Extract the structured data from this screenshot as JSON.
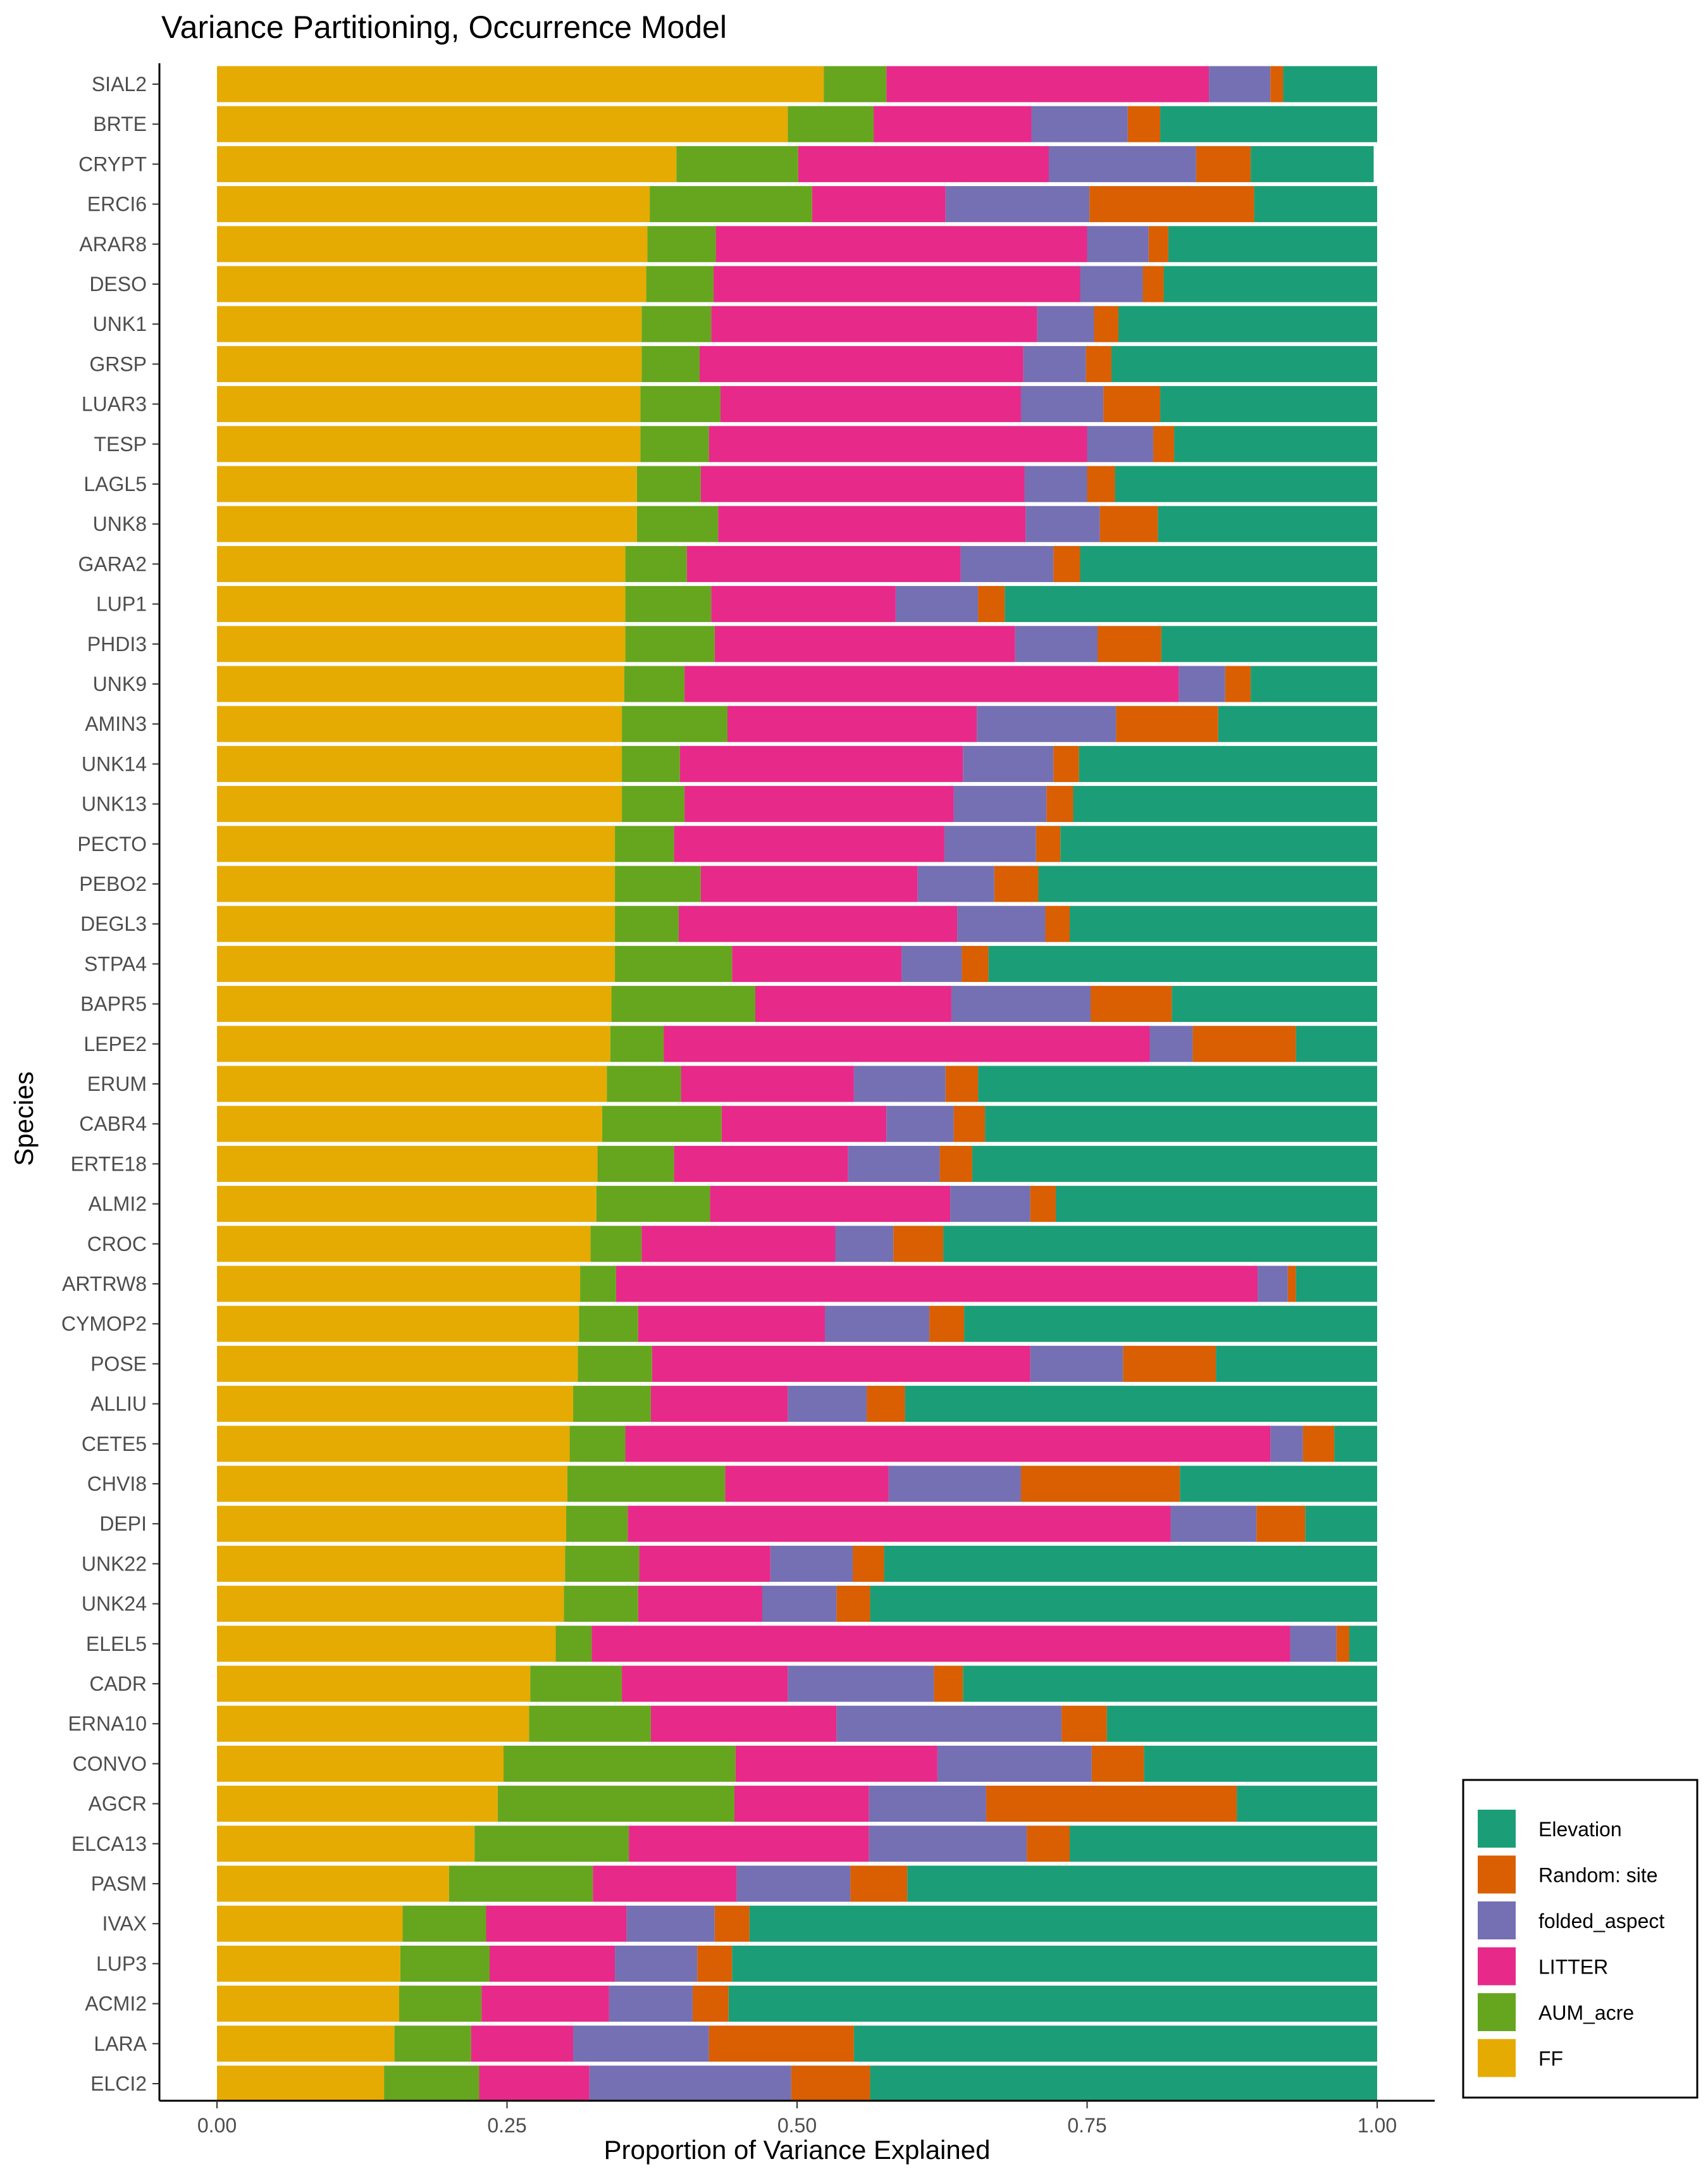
{
  "chart_data": {
    "type": "bar",
    "orientation": "horizontal",
    "stacked": true,
    "title": "Variance Partitioning, Occurrence Model",
    "xlabel": "Proportion of Variance Explained",
    "ylabel": "Species",
    "xlim": [
      0,
      1
    ],
    "x_ticks": [
      0,
      0.25,
      0.5,
      0.75,
      1
    ],
    "x_tick_labels": [
      "0.00",
      "0.25",
      "0.50",
      "0.75",
      "1.00"
    ],
    "grid": false,
    "legend_position": "bottom-right",
    "categories": [
      "SIAL2",
      "BRTE",
      "CRYPT",
      "ERCI6",
      "ARAR8",
      "DESO",
      "UNK1",
      "GRSP",
      "LUAR3",
      "TESP",
      "LAGL5",
      "UNK8",
      "GARA2",
      "LUP1",
      "PHDI3",
      "UNK9",
      "AMIN3",
      "UNK14",
      "UNK13",
      "PECTO",
      "PEBO2",
      "DEGL3",
      "STPA4",
      "BAPR5",
      "LEPE2",
      "ERUM",
      "CABR4",
      "ERTE18",
      "ALMI2",
      "CROC",
      "ARTRW8",
      "CYMOP2",
      "POSE",
      "ALLIU",
      "CETE5",
      "CHVI8",
      "DEPI",
      "UNK22",
      "UNK24",
      "ELEL5",
      "CADR",
      "ERNA10",
      "CONVO",
      "AGCR",
      "ELCA13",
      "PASM",
      "IVAX",
      "LUP3",
      "ACMI2",
      "LARA",
      "ELCI2"
    ],
    "series": [
      {
        "name": "FF",
        "color": "#E6AB02",
        "values": [
          0.523,
          0.492,
          0.396,
          0.373,
          0.371,
          0.37,
          0.366,
          0.366,
          0.365,
          0.365,
          0.362,
          0.362,
          0.352,
          0.352,
          0.352,
          0.351,
          0.349,
          0.349,
          0.349,
          0.343,
          0.343,
          0.343,
          0.343,
          0.34,
          0.339,
          0.336,
          0.332,
          0.328,
          0.327,
          0.322,
          0.313,
          0.312,
          0.311,
          0.307,
          0.304,
          0.302,
          0.301,
          0.3,
          0.299,
          0.292,
          0.27,
          0.269,
          0.247,
          0.242,
          0.222,
          0.2,
          0.16,
          0.158,
          0.157,
          0.153,
          0.144
        ]
      },
      {
        "name": "AUM_acre",
        "color": "#66A61E",
        "values": [
          0.054,
          0.074,
          0.105,
          0.14,
          0.059,
          0.058,
          0.06,
          0.05,
          0.069,
          0.059,
          0.055,
          0.07,
          0.053,
          0.074,
          0.077,
          0.052,
          0.091,
          0.05,
          0.054,
          0.051,
          0.074,
          0.055,
          0.101,
          0.124,
          0.046,
          0.064,
          0.103,
          0.066,
          0.098,
          0.044,
          0.031,
          0.051,
          0.064,
          0.067,
          0.048,
          0.136,
          0.053,
          0.064,
          0.064,
          0.031,
          0.079,
          0.105,
          0.2,
          0.204,
          0.133,
          0.124,
          0.072,
          0.077,
          0.071,
          0.066,
          0.082
        ]
      },
      {
        "name": "LITTER",
        "color": "#E7298A",
        "values": [
          0.278,
          0.136,
          0.216,
          0.115,
          0.32,
          0.316,
          0.281,
          0.279,
          0.259,
          0.326,
          0.279,
          0.265,
          0.236,
          0.159,
          0.259,
          0.426,
          0.215,
          0.244,
          0.232,
          0.233,
          0.187,
          0.24,
          0.146,
          0.169,
          0.419,
          0.149,
          0.142,
          0.15,
          0.207,
          0.167,
          0.553,
          0.161,
          0.326,
          0.118,
          0.556,
          0.141,
          0.468,
          0.113,
          0.107,
          0.602,
          0.143,
          0.16,
          0.174,
          0.116,
          0.207,
          0.124,
          0.121,
          0.108,
          0.11,
          0.088,
          0.095
        ]
      },
      {
        "name": "folded_aspect",
        "color": "#7570B3",
        "values": [
          0.053,
          0.083,
          0.127,
          0.124,
          0.053,
          0.054,
          0.049,
          0.054,
          0.071,
          0.057,
          0.054,
          0.064,
          0.08,
          0.071,
          0.071,
          0.04,
          0.12,
          0.078,
          0.08,
          0.079,
          0.066,
          0.076,
          0.052,
          0.12,
          0.037,
          0.079,
          0.058,
          0.079,
          0.069,
          0.05,
          0.026,
          0.09,
          0.08,
          0.068,
          0.028,
          0.114,
          0.074,
          0.071,
          0.064,
          0.04,
          0.126,
          0.194,
          0.133,
          0.101,
          0.136,
          0.098,
          0.076,
          0.071,
          0.072,
          0.117,
          0.174
        ]
      },
      {
        "name": "Random: site",
        "color": "#D95F02",
        "values": [
          0.011,
          0.028,
          0.047,
          0.142,
          0.017,
          0.018,
          0.021,
          0.022,
          0.049,
          0.018,
          0.024,
          0.05,
          0.023,
          0.023,
          0.055,
          0.022,
          0.088,
          0.022,
          0.023,
          0.021,
          0.038,
          0.021,
          0.023,
          0.07,
          0.089,
          0.028,
          0.027,
          0.028,
          0.022,
          0.043,
          0.007,
          0.03,
          0.08,
          0.033,
          0.027,
          0.137,
          0.042,
          0.027,
          0.029,
          0.011,
          0.025,
          0.039,
          0.045,
          0.216,
          0.037,
          0.049,
          0.03,
          0.03,
          0.031,
          0.125,
          0.068
        ]
      },
      {
        "name": "Elevation",
        "color": "#1B9E77",
        "values": [
          0.081,
          0.187,
          0.106,
          0.106,
          0.18,
          0.184,
          0.223,
          0.229,
          0.187,
          0.175,
          0.226,
          0.189,
          0.256,
          0.321,
          0.186,
          0.109,
          0.137,
          0.257,
          0.262,
          0.273,
          0.292,
          0.265,
          0.335,
          0.177,
          0.07,
          0.344,
          0.338,
          0.349,
          0.277,
          0.374,
          0.07,
          0.356,
          0.139,
          0.407,
          0.037,
          0.17,
          0.062,
          0.425,
          0.437,
          0.024,
          0.357,
          0.233,
          0.201,
          0.121,
          0.265,
          0.405,
          0.541,
          0.556,
          0.559,
          0.451,
          0.437
        ]
      }
    ]
  },
  "legend_order": [
    "Elevation",
    "Random: site",
    "folded_aspect",
    "LITTER",
    "AUM_acre",
    "FF"
  ]
}
